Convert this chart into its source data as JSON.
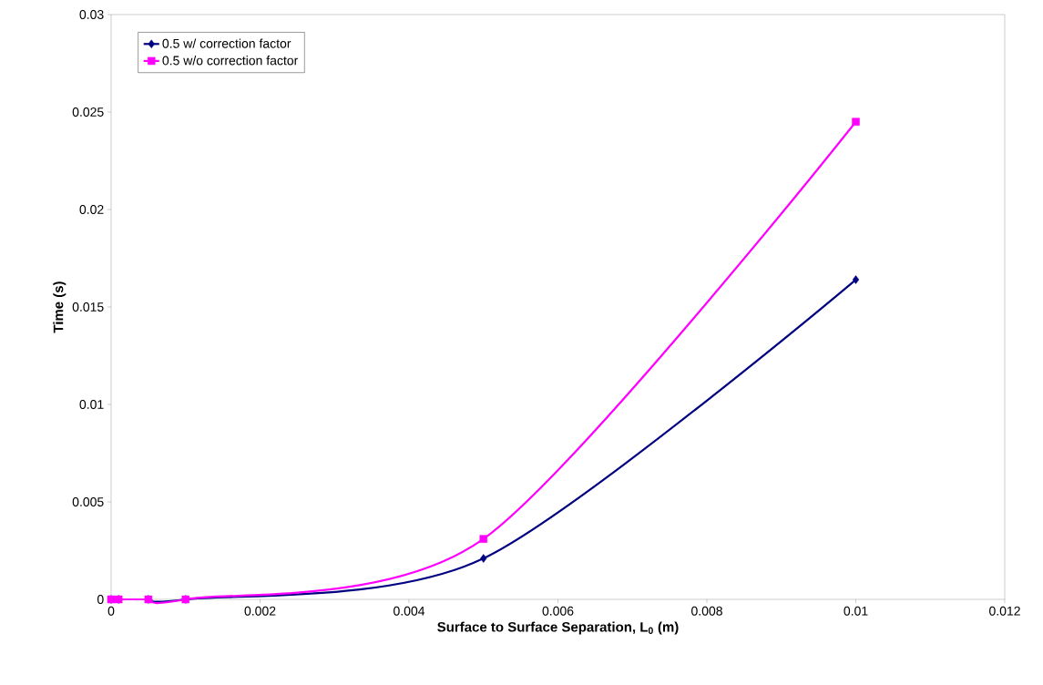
{
  "chart_data": {
    "type": "line",
    "xlabel": "Surface to Surface Separation, L$_{0}$ (m)",
    "ylabel": "Time (s)",
    "x": [
      0,
      0.0001,
      0.0005,
      0.001,
      0.005,
      0.01
    ],
    "series": [
      {
        "name": "0.5 w/ correction factor",
        "color": "#000080",
        "marker": "diamond",
        "values": [
          0,
          0,
          0,
          0,
          0.0021,
          0.0164
        ]
      },
      {
        "name": "0.5 w/o correction factor",
        "color": "#ff00ff",
        "marker": "square",
        "values": [
          0,
          0,
          0,
          0,
          0.0031,
          0.0245
        ]
      }
    ],
    "xlim": [
      0,
      0.012
    ],
    "ylim": [
      0,
      0.03
    ],
    "xticks": [
      0,
      0.002,
      0.004,
      0.006,
      0.008,
      0.01,
      0.012
    ],
    "yticks": [
      0,
      0.005,
      0.01,
      0.015,
      0.02,
      0.025,
      0.03
    ],
    "legend": "top left",
    "grid": false,
    "line_style": "solid"
  }
}
